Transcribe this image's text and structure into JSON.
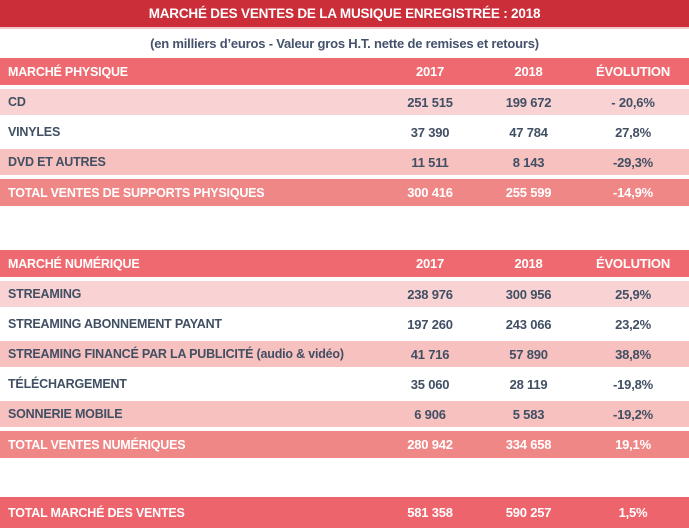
{
  "banner": {
    "title": "MARCHÉ DES VENTES DE LA MUSIQUE ENREGISTRÉE : 2018"
  },
  "subtitle": {
    "text": "(en milliers d’euros - Valeur gros H.T. nette de remises et retours)"
  },
  "columns": {
    "y2017": "2017",
    "y2018": "2018",
    "evolution": "ÉVOLUTION"
  },
  "physical": {
    "header": "MARCHÉ PHYSIQUE",
    "rows": [
      {
        "label": "CD",
        "y2017": "251 515",
        "y2018": "199 672",
        "evo": "- 20,6%"
      },
      {
        "label": "VINYLES",
        "y2017": "37 390",
        "y2018": "47 784",
        "evo": "27,8%"
      },
      {
        "label": "DVD ET AUTRES",
        "y2017": "11 511",
        "y2018": "8 143",
        "evo": "-29,3%"
      }
    ],
    "total": {
      "label": "TOTAL VENTES DE SUPPORTS PHYSIQUES",
      "y2017": "300 416",
      "y2018": "255 599",
      "evo": "-14,9%"
    }
  },
  "digital": {
    "header": "MARCHÉ NUMÉRIQUE",
    "rows": [
      {
        "label": "STREAMING",
        "y2017": "238 976",
        "y2018": "300 956",
        "evo": "25,9%"
      },
      {
        "label": "STREAMING ABONNEMENT PAYANT",
        "y2017": "197 260",
        "y2018": "243 066",
        "evo": "23,2%"
      },
      {
        "label": "STREAMING FINANCÉ PAR LA PUBLICITÉ (audio & vidéo)",
        "y2017": "41 716",
        "y2018": "57 890",
        "evo": "38,8%"
      },
      {
        "label": "TÉLÉCHARGEMENT",
        "y2017": "35 060",
        "y2018": "28 119",
        "evo": "-19,8%"
      },
      {
        "label": "SONNERIE MOBILE",
        "y2017": "6 906",
        "y2018": "5 583",
        "evo": "-19,2%"
      }
    ],
    "total": {
      "label": "TOTAL VENTES NUMÉRIQUES",
      "y2017": "280 942",
      "y2018": "334 658",
      "evo": "19,1%"
    }
  },
  "grand_total": {
    "label": "TOTAL MARCHÉ DES VENTES",
    "y2017": "581 358",
    "y2018": "590 257",
    "evo": "1,5%"
  },
  "colors": {
    "banner_red": "#cb2e39",
    "header_salmon": "#ef6a70",
    "row_pink_light": "#f9d3d3",
    "row_pink_medium": "#f6c1bf",
    "subtotal_salmon": "#f08787",
    "grand_total_red": "#ee646c",
    "text_dark": "#414f63",
    "text_white": "#ffffff"
  }
}
